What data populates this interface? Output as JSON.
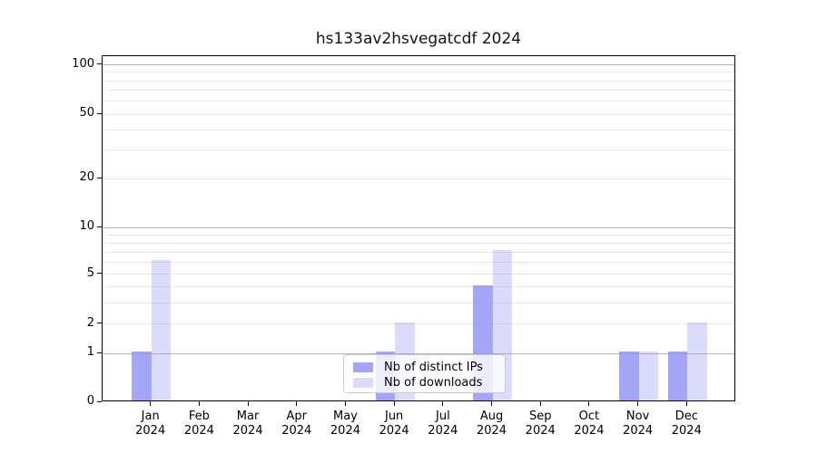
{
  "title": "hs133av2hsvegatcdf 2024",
  "colors": {
    "background": "#ffffff",
    "spine": "#000000",
    "grid_major": "#b3b3b3",
    "grid_minor": "#e8e8e8",
    "legend_border": "#cccccc",
    "legend_background": "rgba(255,255,255,0.8)",
    "text": "#000000",
    "bar_distinct_ips": "rgba(147,147,247,0.83)",
    "bar_downloads": "rgba(147,147,247,0.33)"
  },
  "chart_data": {
    "type": "bar",
    "title": "hs133av2hsvegatcdf 2024",
    "categories": [
      "Jan",
      "Feb",
      "Mar",
      "Apr",
      "May",
      "Jun",
      "Jul",
      "Aug",
      "Sep",
      "Oct",
      "Nov",
      "Dec"
    ],
    "year_label": "2024",
    "series": [
      {
        "name": "Nb of distinct IPs",
        "color": "rgba(147,147,247,0.83)",
        "values": [
          1,
          0,
          0,
          0,
          0,
          1,
          0,
          4,
          0,
          0,
          1,
          1
        ]
      },
      {
        "name": "Nb of downloads",
        "color": "rgba(147,147,247,0.33)",
        "values": [
          6,
          0,
          0,
          0,
          0,
          2,
          0,
          7,
          0,
          0,
          1,
          2
        ]
      }
    ],
    "yscale": "log1p",
    "ylim": [
      0,
      115
    ],
    "ytick_labels": [
      "0",
      "1",
      "2",
      "5",
      "10",
      "20",
      "50",
      "100"
    ],
    "ytick_values": [
      0,
      1,
      2,
      5,
      10,
      20,
      50,
      100
    ],
    "grid_major_values": [
      1,
      10,
      100
    ],
    "grid_minor_values": [
      2,
      3,
      4,
      5,
      6,
      7,
      8,
      9,
      20,
      30,
      40,
      50,
      60,
      70,
      80,
      90
    ],
    "grid": true,
    "legend_position": "lower center",
    "legend_entries": [
      "Nb of distinct IPs",
      "Nb of downloads"
    ],
    "bar_width_units": 0.4
  }
}
